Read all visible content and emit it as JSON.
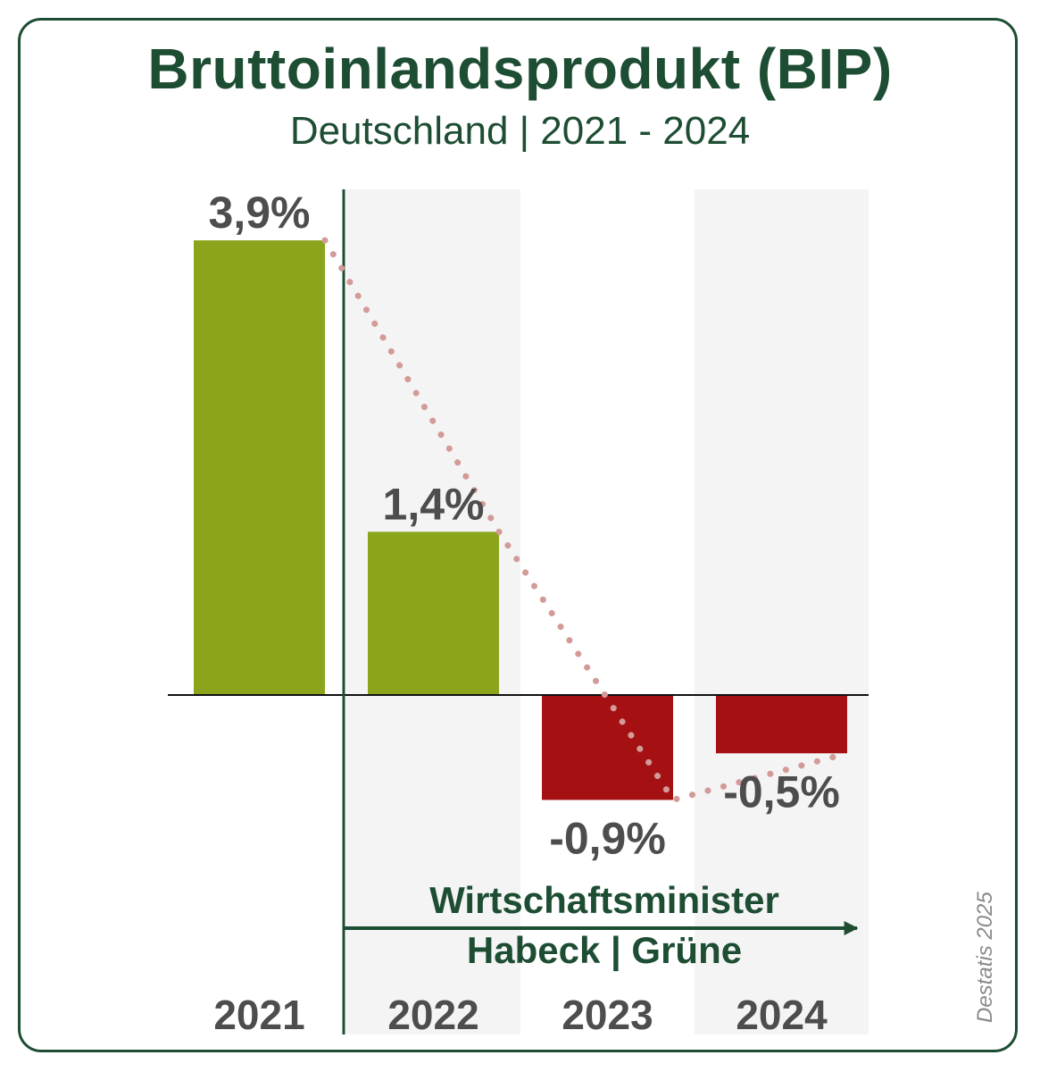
{
  "title": "Bruttoinlandsprodukt (BIP)",
  "subtitle": "Deutschland | 2021 - 2024",
  "source": "Destatis 2025",
  "annotation": {
    "line1": "Wirtschaftsminister",
    "line2": "Habeck | Grüne"
  },
  "colors": {
    "frame": "#1d4d32",
    "positive": "#8aa51c",
    "negative": "#a51113",
    "trend": "#d29b98",
    "label": "#4d4d4d",
    "band": "#f4f4f4"
  },
  "chart_data": {
    "type": "bar",
    "categories": [
      "2021",
      "2022",
      "2023",
      "2024"
    ],
    "values": [
      3.9,
      1.4,
      -0.9,
      -0.5
    ],
    "value_labels": [
      "3,9%",
      "1,4%",
      "-0,9%",
      "-0,5%"
    ],
    "unit": "%",
    "title": "Bruttoinlandsprodukt (BIP)",
    "subtitle": "Deutschland | 2021 - 2024",
    "trend_line": "dotted",
    "highlight_from": "2022",
    "ylim": [
      -1.0,
      3.9
    ],
    "grid": false,
    "legend": "none"
  }
}
